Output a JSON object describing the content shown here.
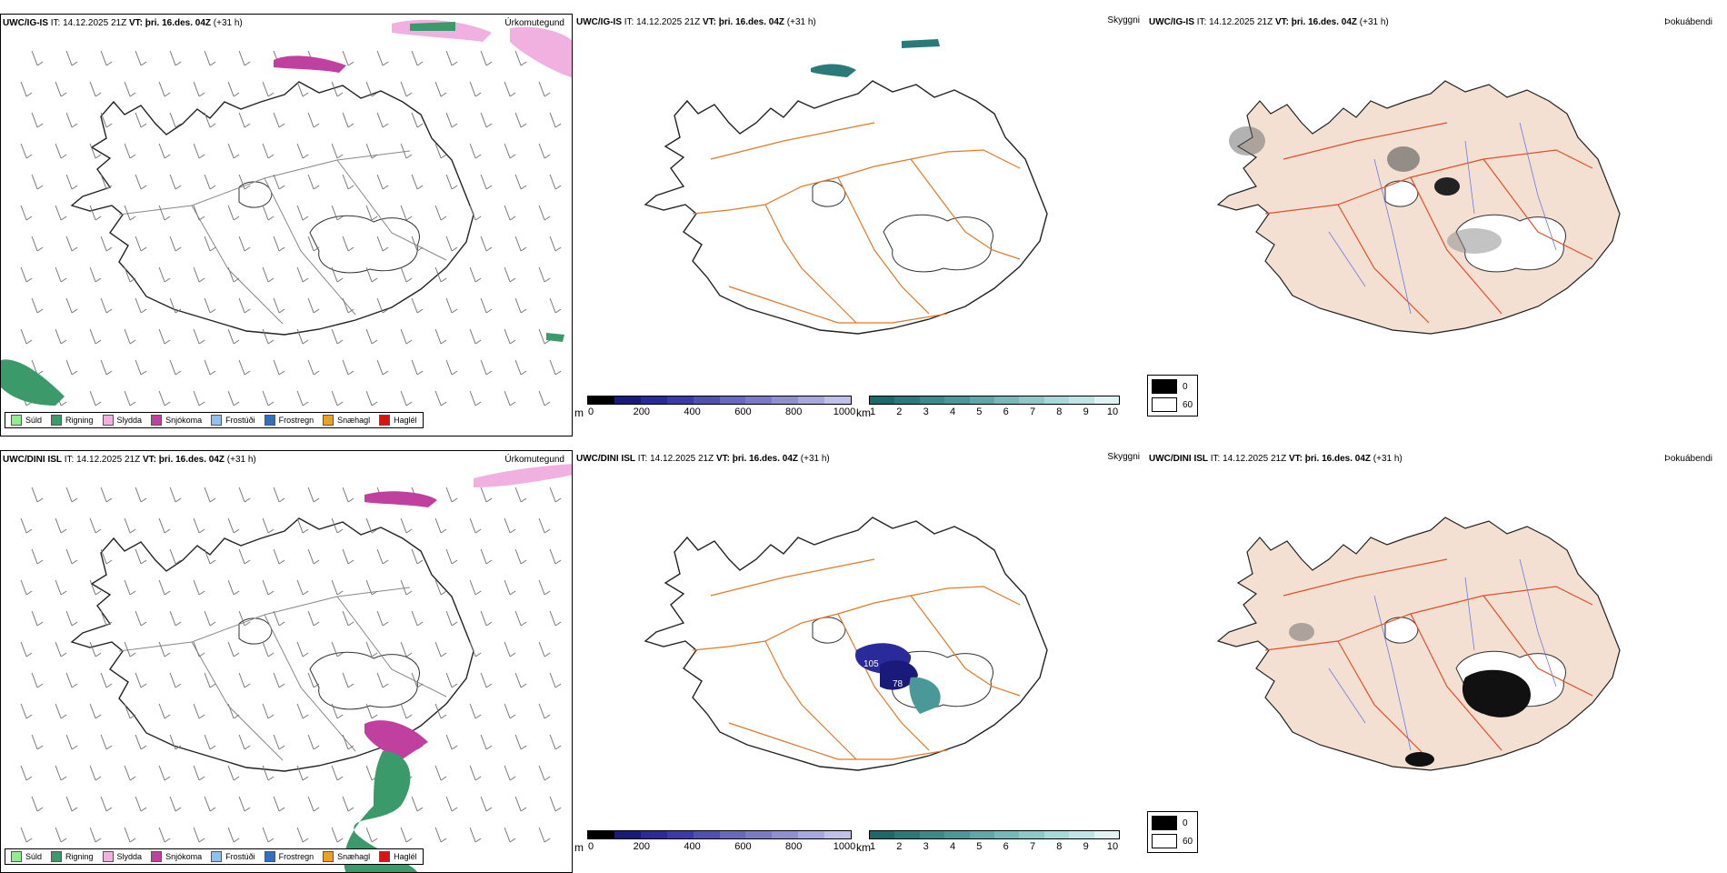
{
  "header_prefix": "IT:",
  "header_vt": "VT:",
  "rows": [
    {
      "model": "UWC/IG-IS",
      "it": "14.12.2025 21Z",
      "vt": "þri. 16.des. 04Z",
      "lead": "(+31 h)"
    },
    {
      "model": "UWC/DINI ISL",
      "it": "14.12.2025 21Z",
      "vt": "þri. 16.des. 04Z",
      "lead": "(+31 h)"
    }
  ],
  "panels": {
    "precip": "Úrkomutegund",
    "vis": "Skyggni",
    "fog": "Þokuábendi"
  },
  "precip_legend": [
    {
      "label": "Súld",
      "color": "#90ee90"
    },
    {
      "label": "Rigning",
      "color": "#3a9a6a"
    },
    {
      "label": "Slydda",
      "color": "#f0b0e0"
    },
    {
      "label": "Snjókoma",
      "color": "#c040a0"
    },
    {
      "label": "Frostúði",
      "color": "#90c0f0"
    },
    {
      "label": "Frostregn",
      "color": "#3070c0"
    },
    {
      "label": "Snæhagl",
      "color": "#f0a020"
    },
    {
      "label": "Haglél",
      "color": "#e01010"
    }
  ],
  "vis_bar_m": {
    "unit": "m",
    "ticks": [
      "0",
      "200",
      "400",
      "600",
      "800",
      "1000"
    ],
    "colors": [
      "#000000",
      "#1a1a7a",
      "#2a2a9a",
      "#3a3aaa",
      "#5050b0",
      "#6868c0",
      "#7a7ac8",
      "#9090d0",
      "#a8a8dc",
      "#c0c0e8"
    ]
  },
  "vis_bar_km": {
    "unit": "km",
    "ticks": [
      "1",
      "2",
      "3",
      "4",
      "5",
      "6",
      "7",
      "8",
      "9",
      "10"
    ],
    "colors": [
      "#1a6a6a",
      "#2a7a7a",
      "#3a8a8a",
      "#4a9898",
      "#60a8a8",
      "#78b8b8",
      "#90c8c8",
      "#a8d8d8",
      "#c0e4e4",
      "#e0f2f2"
    ]
  },
  "fog_legend": {
    "black": "0",
    "white": "60"
  },
  "vis_labels": [
    "105",
    "78"
  ],
  "colors": {
    "land_fog": "#f3e0d2",
    "roads": "#e07a2a",
    "rivers": "#6a7ae0"
  }
}
